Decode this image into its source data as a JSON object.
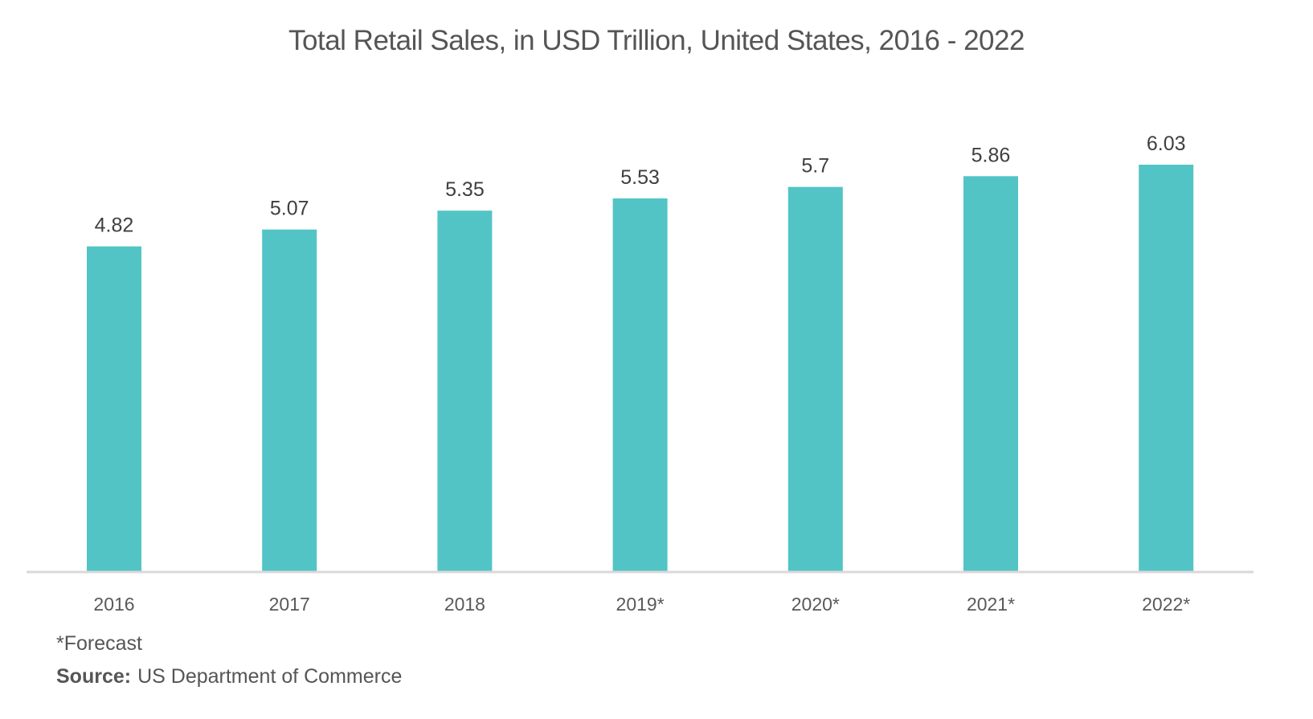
{
  "chart_data": {
    "type": "bar",
    "title": "Total Retail Sales, in USD Trillion, United States, 2016 - 2022",
    "categories": [
      "2016",
      "2017",
      "2018",
      "2019*",
      "2020*",
      "2021*",
      "2022*"
    ],
    "values": [
      4.82,
      5.07,
      5.35,
      5.53,
      5.7,
      5.86,
      6.03
    ],
    "value_labels": [
      "4.82",
      "5.07",
      "5.35",
      "5.53",
      "5.7",
      "5.86",
      "6.03"
    ],
    "xlabel": "",
    "ylabel": "",
    "ylim": [
      0,
      6.03
    ],
    "grid": false,
    "legend": "none",
    "bar_color": "#52c4c6"
  },
  "footnote": "*Forecast",
  "source": {
    "label": "Source:",
    "text": "US Department of Commerce"
  }
}
